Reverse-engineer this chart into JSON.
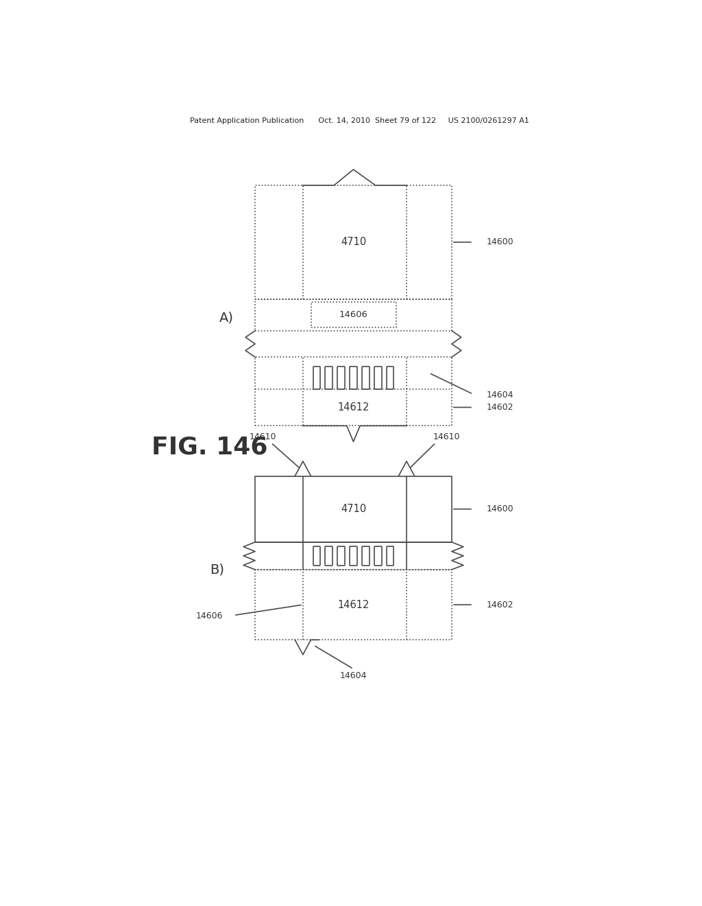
{
  "bg_color": "#ffffff",
  "lc": "#4a4a4a",
  "lw": 1.2,
  "lw_thick": 1.4,
  "header": "Patent Application Publication      Oct. 14, 2010  Sheet 79 of 122     US 2100/0261297 A1",
  "fig_label": "FIG. 146",
  "label_A": "A)",
  "label_B": "B)",
  "txt_4710": "4710",
  "txt_14606": "14606",
  "txt_14612": "14612",
  "txt_14600": "14600",
  "txt_14604": "14604",
  "txt_14602": "14602",
  "txt_14610": "14610"
}
